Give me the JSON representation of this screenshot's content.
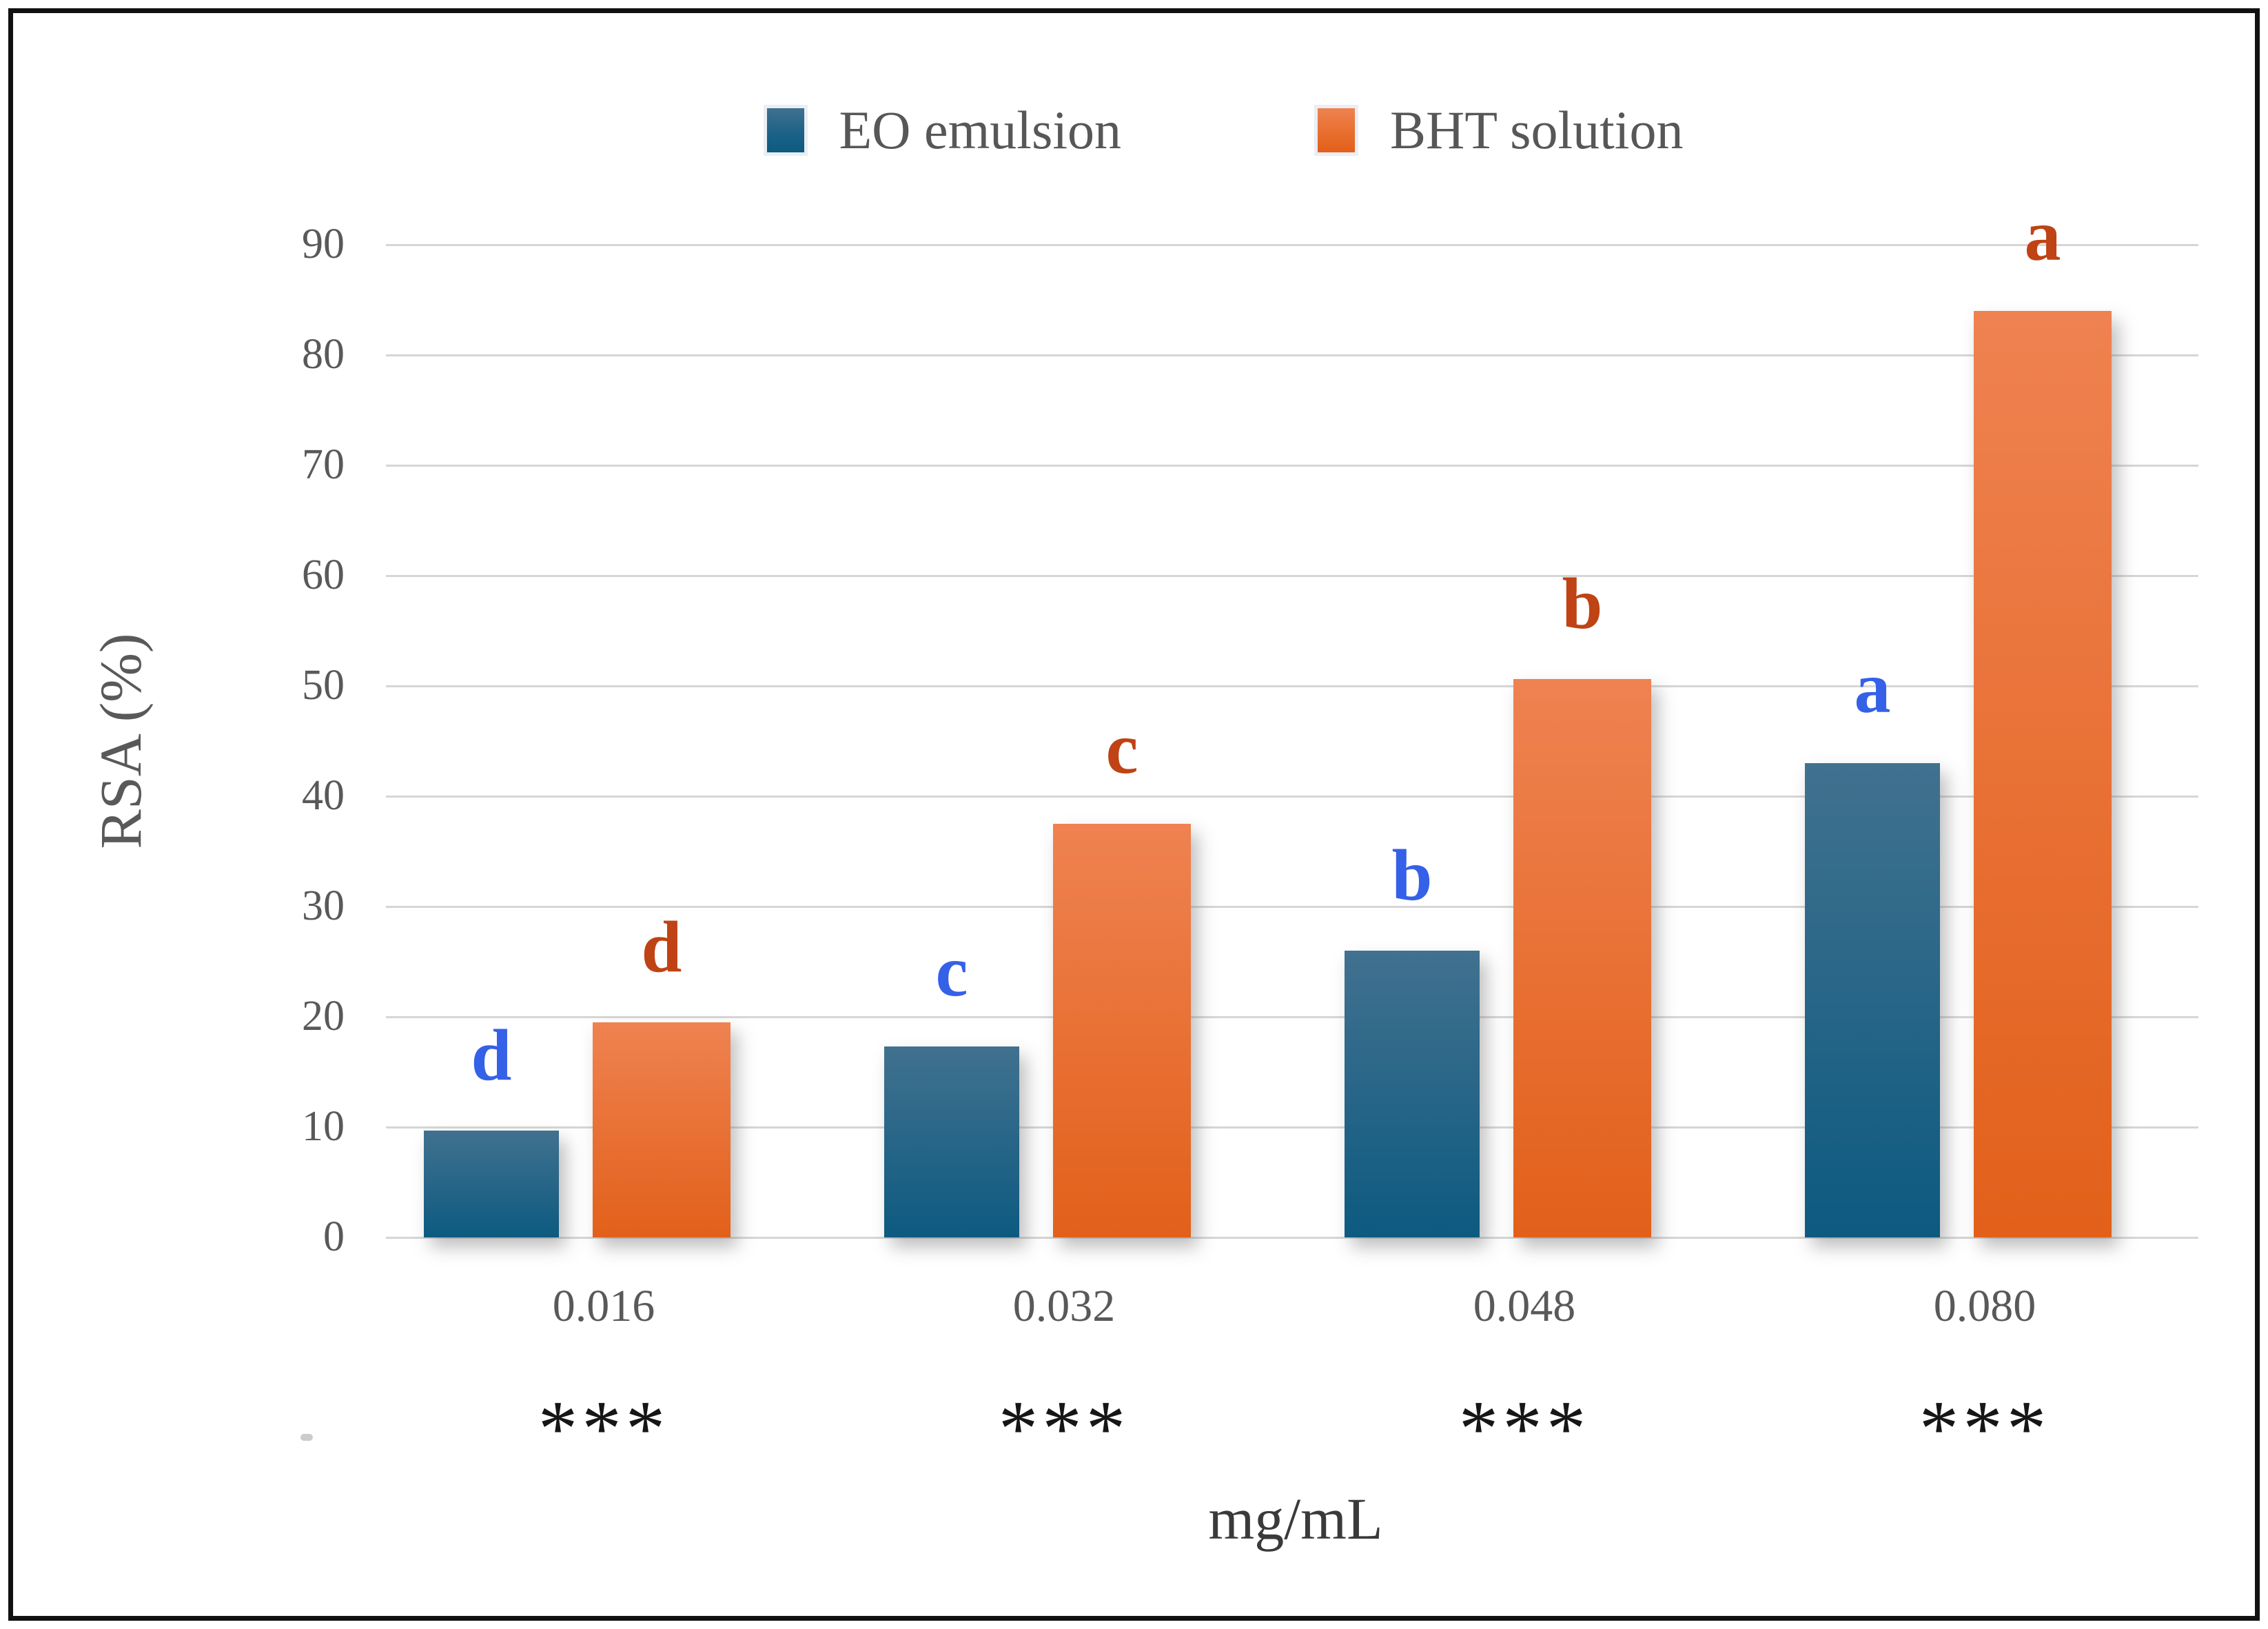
{
  "chart_data": {
    "type": "bar",
    "title": "",
    "categories": [
      "0.016",
      "0.032",
      "0.048",
      "0.080"
    ],
    "series": [
      {
        "name": "EO emulsion",
        "values": [
          9.7,
          17.3,
          26,
          43
        ],
        "letters": [
          "d",
          "c",
          "b",
          "a"
        ],
        "letter_color": "#3560e8",
        "bar_color_top": "#41718f",
        "bar_color_bottom": "#0d5a80"
      },
      {
        "name": "BHT solution",
        "values": [
          19.5,
          37.5,
          50.6,
          84
        ],
        "letters": [
          "d",
          "c",
          "b",
          "a"
        ],
        "letter_color": "#bf4314",
        "bar_color_top": "#ef8251",
        "bar_color_bottom": "#e2601a"
      }
    ],
    "significance_per_category": [
      "***",
      "***",
      "***",
      "***"
    ],
    "xlabel": "mg/mL",
    "ylabel": "RSA (%)",
    "ylim": [
      0,
      90
    ],
    "ytick_step": 10,
    "ytick_labels": [
      "0",
      "10",
      "20",
      "30",
      "40",
      "50",
      "60",
      "70",
      "80",
      "90"
    ],
    "grid": true,
    "legend_position": "top-center",
    "colors": {
      "grid": "#d6d6d6",
      "axis_text": "#595959",
      "significance_text": "#161616",
      "xlabel_text": "#3a3a3a",
      "frame": "#111111"
    }
  }
}
